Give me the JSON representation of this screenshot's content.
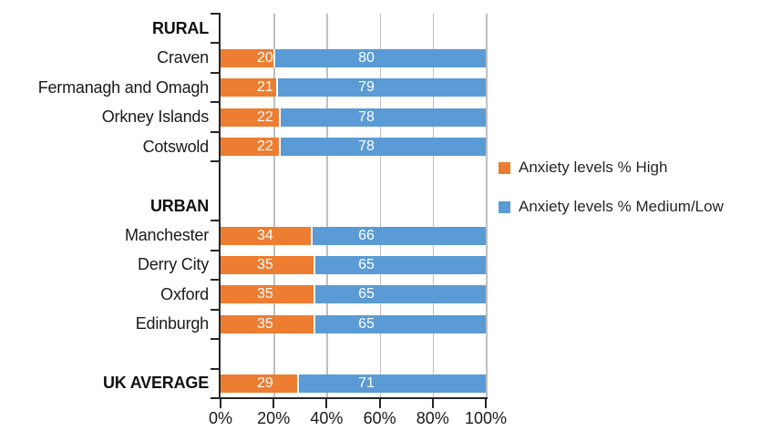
{
  "chart_data": {
    "type": "bar",
    "orientation": "horizontal",
    "stacked": true,
    "unit": "%",
    "title": "",
    "legend_position": "right",
    "grid": true,
    "series": [
      {
        "name": "Anxiety levels % High",
        "color": "#ED7D31"
      },
      {
        "name": "Anxiety levels % Medium/Low",
        "color": "#5B9BD5"
      }
    ],
    "rows": [
      {
        "label": "RURAL",
        "header": true,
        "values": null
      },
      {
        "label": "Craven",
        "header": false,
        "values": [
          20,
          80
        ]
      },
      {
        "label": "Fermanagh and Omagh",
        "header": false,
        "values": [
          21,
          79
        ]
      },
      {
        "label": "Orkney Islands",
        "header": false,
        "values": [
          22,
          78
        ]
      },
      {
        "label": "Cotswold",
        "header": false,
        "values": [
          22,
          78
        ]
      },
      {
        "label": "",
        "header": false,
        "values": null
      },
      {
        "label": "URBAN",
        "header": true,
        "values": null
      },
      {
        "label": "Manchester",
        "header": false,
        "values": [
          34,
          66
        ]
      },
      {
        "label": "Derry City",
        "header": false,
        "values": [
          35,
          65
        ]
      },
      {
        "label": "Oxford",
        "header": false,
        "values": [
          35,
          65
        ]
      },
      {
        "label": "Edinburgh",
        "header": false,
        "values": [
          35,
          65
        ]
      },
      {
        "label": "",
        "header": false,
        "values": null
      },
      {
        "label": "UK AVERAGE",
        "header": true,
        "values": [
          29,
          71
        ]
      }
    ],
    "x_axis": {
      "min": 0,
      "max": 100,
      "tick_labels": [
        "0%",
        "20%",
        "40%",
        "60%",
        "80%",
        "100%"
      ]
    },
    "y_axis": {
      "tick_skip_boundaries": [
        6
      ]
    },
    "colors": {
      "gridline": "#BFBFBF",
      "axis": "#262626",
      "text": "#1A1A1A",
      "bar_label": "#FFFFFF"
    }
  }
}
